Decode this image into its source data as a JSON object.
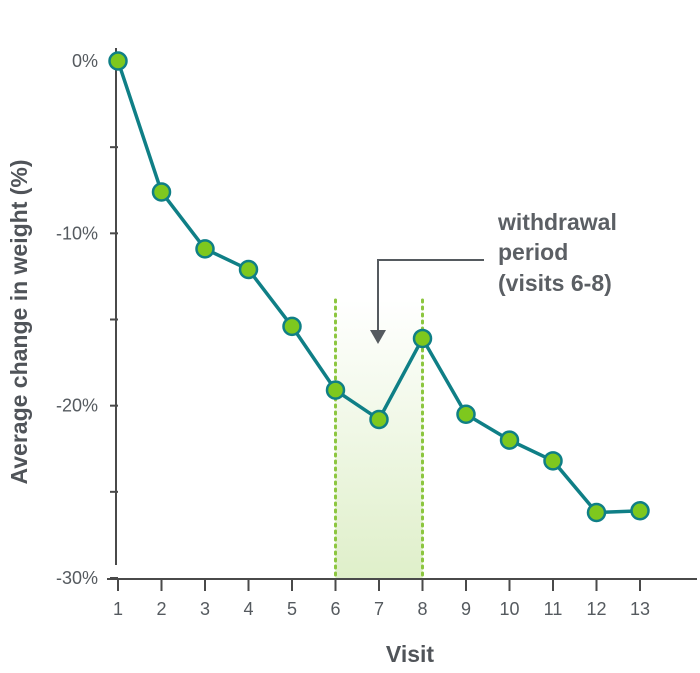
{
  "chart_data": {
    "type": "line",
    "xlabel": "Visit",
    "ylabel": "Average change in weight (%)",
    "x": [
      1,
      2,
      3,
      4,
      5,
      6,
      7,
      8,
      9,
      10,
      11,
      12,
      13
    ],
    "series": [
      {
        "values": [
          0,
          -7.6,
          -10.9,
          -12.1,
          -15.4,
          -19.1,
          -20.8,
          -16.1,
          -20.5,
          -22.0,
          -23.2,
          -26.2,
          -26.1
        ]
      }
    ],
    "xlim": [
      1,
      13
    ],
    "ylim": [
      -30,
      0
    ],
    "yticks": [
      0,
      -10,
      -20,
      -30
    ],
    "ytick_labels": [
      "0%",
      "-10%",
      "-20%",
      "-30%"
    ],
    "xtick_labels": [
      "1",
      "2",
      "3",
      "4",
      "5",
      "6",
      "7",
      "8",
      "9",
      "10",
      "11",
      "12",
      "13"
    ],
    "shaded_region": {
      "x_start": 6,
      "x_end": 8
    },
    "annotation": {
      "lines": [
        "withdrawal",
        "period",
        "(visits 6-8)"
      ]
    },
    "grid": false,
    "colors": {
      "line": "#0f7f86",
      "marker_fill": "#7ec81e",
      "marker_stroke": "#0f7f86",
      "axis": "#4a4a4a",
      "band": "#8cc63f",
      "dotted": "#8cc63f",
      "arrow": "#555a5f"
    }
  }
}
